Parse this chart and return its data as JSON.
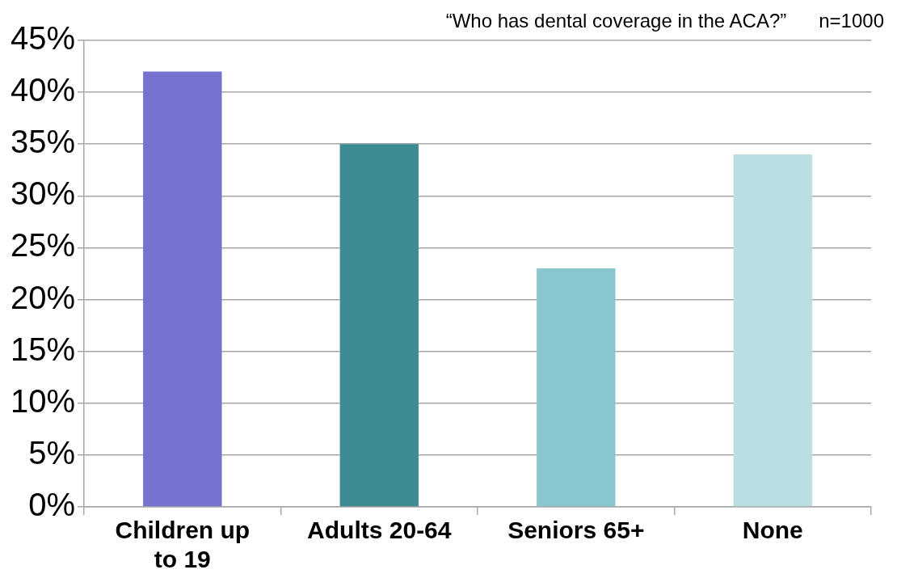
{
  "chart_data": {
    "type": "bar",
    "title": "“Who has dental coverage in the ACA?”",
    "annotations": [
      "n=1000"
    ],
    "categories": [
      "Children up to 19",
      "Adults 20-64",
      "Seniors 65+",
      "None"
    ],
    "values": [
      42,
      35,
      23,
      34
    ],
    "colors": [
      "#7673d0",
      "#3d8c93",
      "#89c6cd",
      "#b9dfe2"
    ],
    "ylim": [
      0,
      45
    ],
    "yticks": [
      {
        "value": 0,
        "label": "0%"
      },
      {
        "value": 5,
        "label": "5%"
      },
      {
        "value": 10,
        "label": "10%"
      },
      {
        "value": 15,
        "label": "15%"
      },
      {
        "value": 20,
        "label": "20%"
      },
      {
        "value": 25,
        "label": "25%"
      },
      {
        "value": 30,
        "label": "30%"
      },
      {
        "value": 35,
        "label": "35%"
      },
      {
        "value": 40,
        "label": "40%"
      },
      {
        "value": 45,
        "label": "45%"
      }
    ],
    "grid": "y",
    "legend": false
  }
}
